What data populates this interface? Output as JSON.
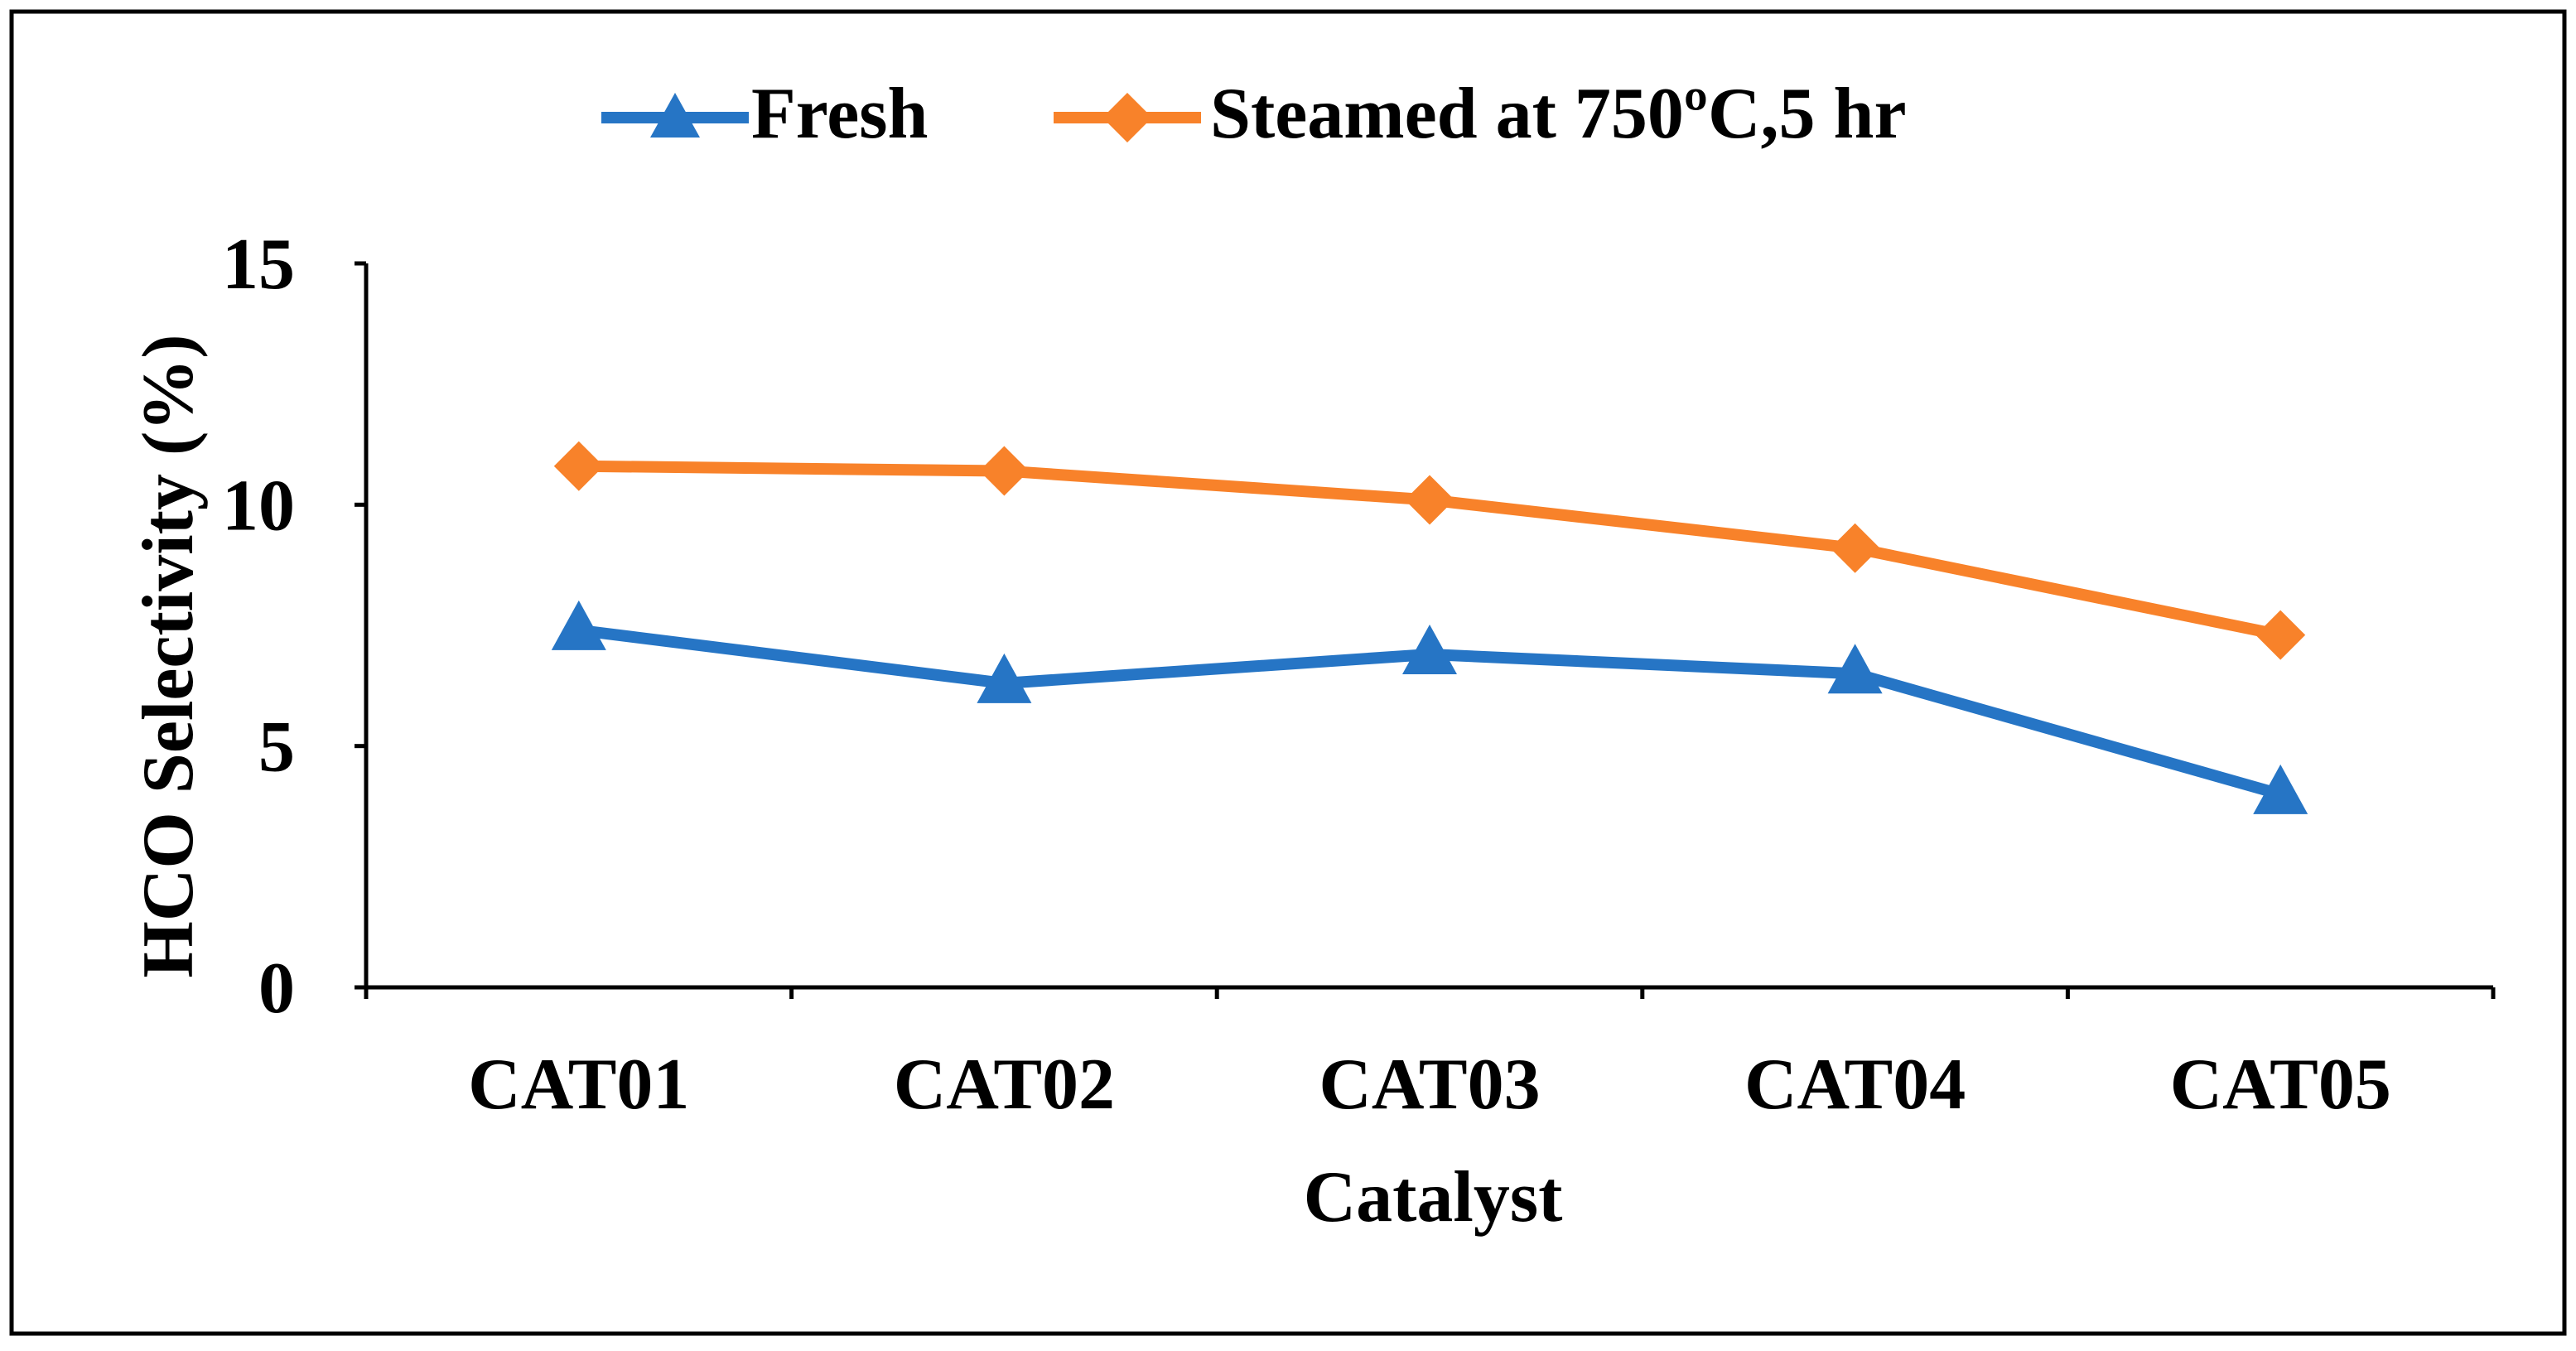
{
  "chart_data": {
    "type": "line",
    "title": "",
    "xlabel": "Catalyst",
    "ylabel": "HCO Selectivity (%)",
    "categories": [
      "CAT01",
      "CAT02",
      "CAT03",
      "CAT04",
      "CAT05"
    ],
    "ylim": [
      0,
      15
    ],
    "yticks": [
      0,
      5,
      10,
      15
    ],
    "grid": false,
    "legend_position": "top",
    "series": [
      {
        "name": "Fresh",
        "marker": "triangle",
        "color": "#2675C5",
        "values": [
          7.4,
          6.3,
          6.9,
          6.5,
          4.0
        ]
      },
      {
        "name": "Steamed at 750ºC,5 hr",
        "marker": "diamond",
        "color": "#F8822A",
        "values": [
          10.8,
          10.7,
          10.1,
          9.1,
          7.3
        ]
      }
    ]
  }
}
